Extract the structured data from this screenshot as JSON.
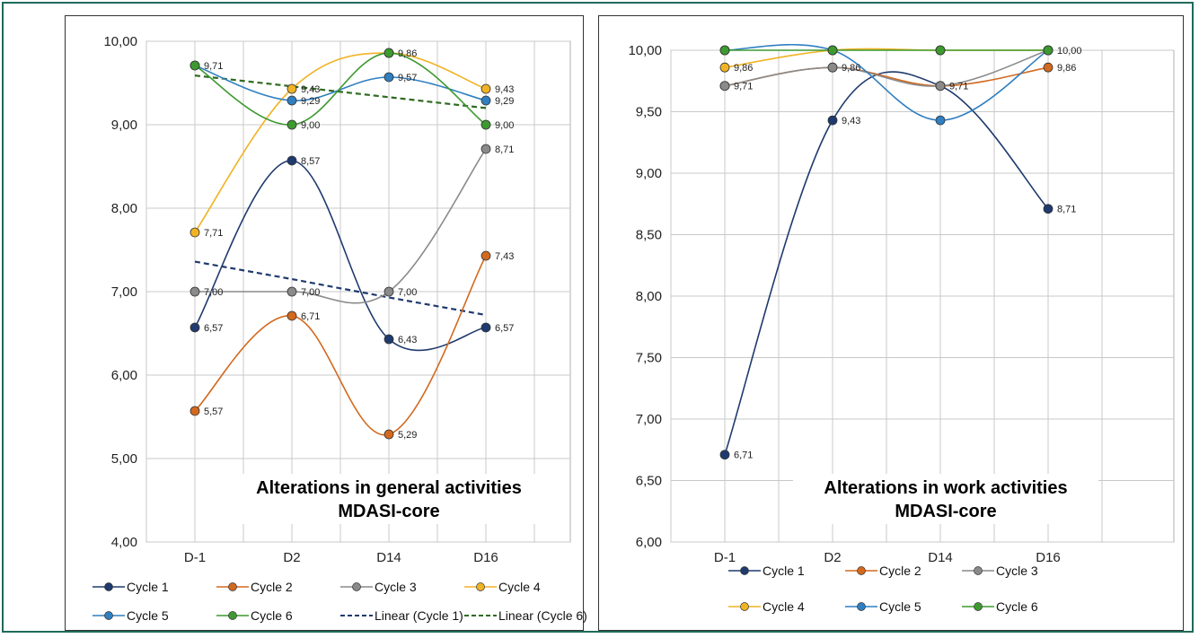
{
  "chart_data": [
    {
      "type": "line",
      "title": "Alterations in general activities",
      "subtitle": "MDASI-core",
      "categories": [
        "D-1",
        "D2",
        "D14",
        "D16"
      ],
      "ylim": [
        4,
        10
      ],
      "yticks": [
        "4,00",
        "5,00",
        "6,00",
        "7,00",
        "8,00",
        "9,00",
        "10,00"
      ],
      "grid": true,
      "legend_position": "bottom",
      "series": [
        {
          "name": "Cycle 1",
          "color": "#1f3a6e",
          "values": [
            6.57,
            8.57,
            6.43,
            6.57
          ],
          "labels": [
            "6,57",
            "8,57",
            "6,43",
            "6,57"
          ]
        },
        {
          "name": "Cycle 2",
          "color": "#d2691e",
          "values": [
            5.57,
            6.71,
            5.29,
            7.43
          ],
          "labels": [
            "5,57",
            "6,71",
            "5,29",
            "7,43"
          ]
        },
        {
          "name": "Cycle 3",
          "color": "#8a8a8a",
          "values": [
            7.0,
            7.0,
            7.0,
            8.71
          ],
          "labels": [
            "7,00",
            "7,00",
            "7,00",
            "8,71"
          ]
        },
        {
          "name": "Cycle 4",
          "color": "#f0b323",
          "values": [
            7.71,
            9.43,
            9.86,
            9.43
          ],
          "labels": [
            "7,71",
            "9,43",
            "9,86",
            "9,43"
          ]
        },
        {
          "name": "Cycle 5",
          "color": "#2f7fc1",
          "values": [
            9.71,
            9.29,
            9.57,
            9.29
          ],
          "labels": [
            "",
            "9,29",
            "9,57",
            "9,29"
          ]
        },
        {
          "name": "Cycle 6",
          "color": "#3d9a2f",
          "values": [
            9.71,
            9.0,
            9.86,
            9.0
          ],
          "labels": [
            "9,71",
            "9,00",
            "",
            "9,00"
          ]
        }
      ],
      "trendlines": [
        {
          "name": "Linear (Cycle 1)",
          "color": "#1f3a6e",
          "values": [
            7.36,
            7.15,
            6.93,
            6.72
          ]
        },
        {
          "name": "Linear (Cycle 6)",
          "color": "#2e6b1f",
          "values": [
            9.59,
            9.46,
            9.33,
            9.2
          ]
        }
      ]
    },
    {
      "type": "line",
      "title": "Alterations in work activities",
      "subtitle": "MDASI-core",
      "categories": [
        "D-1",
        "D2",
        "D14",
        "D16"
      ],
      "ylim": [
        6,
        10
      ],
      "yticks": [
        "6,00",
        "6,50",
        "7,00",
        "7,50",
        "8,00",
        "8,50",
        "9,00",
        "9,50",
        "10,00"
      ],
      "grid": true,
      "legend_position": "bottom",
      "series": [
        {
          "name": "Cycle 1",
          "color": "#1f3a6e",
          "values": [
            6.71,
            9.43,
            9.71,
            8.71
          ],
          "labels": [
            "6,71",
            "9,43",
            "",
            "8,71"
          ]
        },
        {
          "name": "Cycle 2",
          "color": "#d2691e",
          "values": [
            9.71,
            9.86,
            9.71,
            9.86
          ],
          "labels": [
            "",
            "",
            "",
            "9,86"
          ]
        },
        {
          "name": "Cycle 3",
          "color": "#8a8a8a",
          "values": [
            9.71,
            9.86,
            9.71,
            10.0
          ],
          "labels": [
            "9,71",
            "9,86",
            "9,71",
            ""
          ]
        },
        {
          "name": "Cycle 4",
          "color": "#f0b323",
          "values": [
            9.86,
            10.0,
            10.0,
            10.0
          ],
          "labels": [
            "9,86",
            "",
            "",
            ""
          ]
        },
        {
          "name": "Cycle 5",
          "color": "#2f7fc1",
          "values": [
            10.0,
            10.0,
            9.43,
            10.0
          ],
          "labels": [
            "",
            "",
            "",
            "10,00"
          ]
        },
        {
          "name": "Cycle 6",
          "color": "#3d9a2f",
          "values": [
            10.0,
            10.0,
            10.0,
            10.0
          ],
          "labels": [
            "",
            "",
            "",
            ""
          ]
        }
      ],
      "trendlines": []
    }
  ]
}
